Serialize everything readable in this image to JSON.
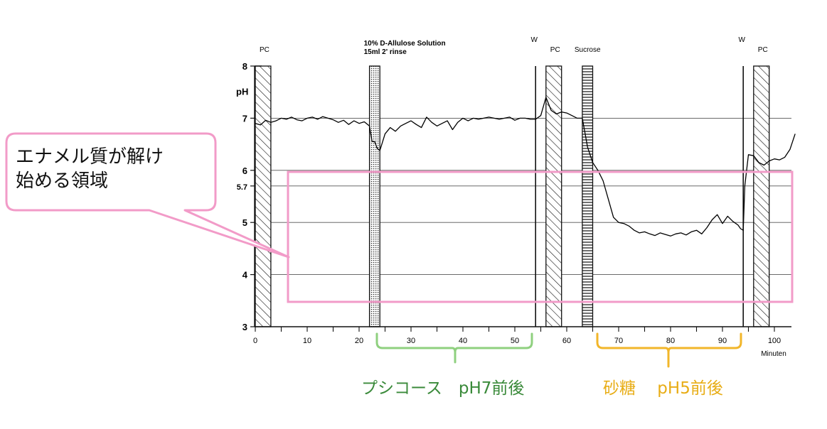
{
  "chart_data": {
    "type": "line",
    "x_unit_label": "Minuten",
    "y_label": "pH",
    "ylim": [
      3,
      8
    ],
    "xlim": [
      -2,
      105
    ],
    "x_ticks": [
      0,
      10,
      20,
      30,
      40,
      50,
      60,
      70,
      80,
      90,
      100
    ],
    "y_ticks": [
      3,
      4,
      5,
      5.7,
      6,
      7,
      8
    ],
    "grid_y": [
      4,
      5,
      5.7,
      6,
      7
    ],
    "phases": [
      {
        "label": "PC",
        "kind": "hatched",
        "x_start": 0,
        "x_end": 3
      },
      {
        "label": "10% D-Allulose Solution",
        "sublabel": "15ml 2' rinse",
        "kind": "dotted",
        "x_start": 22,
        "x_end": 24
      },
      {
        "label": "W",
        "kind": "line",
        "x_start": 54,
        "x_end": 54
      },
      {
        "label": "PC",
        "kind": "hatched",
        "x_start": 56,
        "x_end": 59
      },
      {
        "label": "Sucrose",
        "kind": "striped",
        "x_start": 63,
        "x_end": 65
      },
      {
        "label": "W",
        "kind": "line",
        "x_start": 94,
        "x_end": 94
      },
      {
        "label": "PC",
        "kind": "hatched",
        "x_start": 96,
        "x_end": 99
      }
    ],
    "series": [
      {
        "color": "#000000",
        "x": [
          0,
          1,
          2,
          3,
          4,
          5,
          6,
          7,
          8,
          9,
          10,
          11,
          12,
          13,
          14,
          15,
          16,
          17,
          18,
          19,
          20,
          21,
          22,
          22.5,
          23,
          23.5,
          24,
          25,
          26,
          27,
          28,
          29,
          30,
          31,
          32,
          33,
          34,
          35,
          36,
          37,
          38,
          39,
          40,
          41,
          42,
          43,
          44,
          45,
          46,
          47,
          48,
          49,
          50,
          51,
          52,
          53,
          54,
          55,
          56,
          57,
          58,
          59,
          60,
          61,
          62,
          63,
          64,
          64.5,
          65,
          66,
          67,
          68,
          69,
          70,
          71,
          72,
          73,
          74,
          75,
          76,
          77,
          78,
          79,
          80,
          81,
          82,
          83,
          84,
          85,
          86,
          87,
          88,
          89,
          90,
          91,
          92,
          93,
          93.5,
          94,
          94.3,
          95,
          96,
          97,
          98,
          99,
          100,
          101,
          102,
          103,
          104
        ],
        "values": [
          6.9,
          6.87,
          6.96,
          6.92,
          6.95,
          7.0,
          6.98,
          7.02,
          6.97,
          6.95,
          7.0,
          7.02,
          6.98,
          7.03,
          7.0,
          6.97,
          6.92,
          6.96,
          6.88,
          6.95,
          6.9,
          6.93,
          6.85,
          6.55,
          6.55,
          6.42,
          6.38,
          6.7,
          6.82,
          6.75,
          6.85,
          6.9,
          6.95,
          6.88,
          6.82,
          7.02,
          6.92,
          6.85,
          6.9,
          6.95,
          6.78,
          6.92,
          7.0,
          6.95,
          7.0,
          6.98,
          7.0,
          7.02,
          7.0,
          6.98,
          7.0,
          7.02,
          6.96,
          7.0,
          7.0,
          6.98,
          6.98,
          7.05,
          7.4,
          7.15,
          7.08,
          7.12,
          7.1,
          7.05,
          7.0,
          7.0,
          6.45,
          6.3,
          6.15,
          6.0,
          5.8,
          5.45,
          5.1,
          5.0,
          4.98,
          4.93,
          4.85,
          4.8,
          4.82,
          4.78,
          4.75,
          4.8,
          4.77,
          4.74,
          4.78,
          4.8,
          4.76,
          4.82,
          4.85,
          4.78,
          4.9,
          5.05,
          5.15,
          4.98,
          5.12,
          5.02,
          4.95,
          4.88,
          4.85,
          5.7,
          6.3,
          6.28,
          6.15,
          6.1,
          6.18,
          6.22,
          6.2,
          6.25,
          6.4,
          6.7
        ]
      }
    ]
  },
  "annotations": {
    "callout": "エナメル質が解け\n始める領域",
    "green_label": "プシコース　pH7前後",
    "orange_label": "砂糖　 pH5前後",
    "colors": {
      "pink": "#f29bc8",
      "green": "#8fd07f",
      "green_text": "#3a8a3a",
      "orange": "#f2b62a",
      "orange_text": "#e8ad16"
    }
  }
}
